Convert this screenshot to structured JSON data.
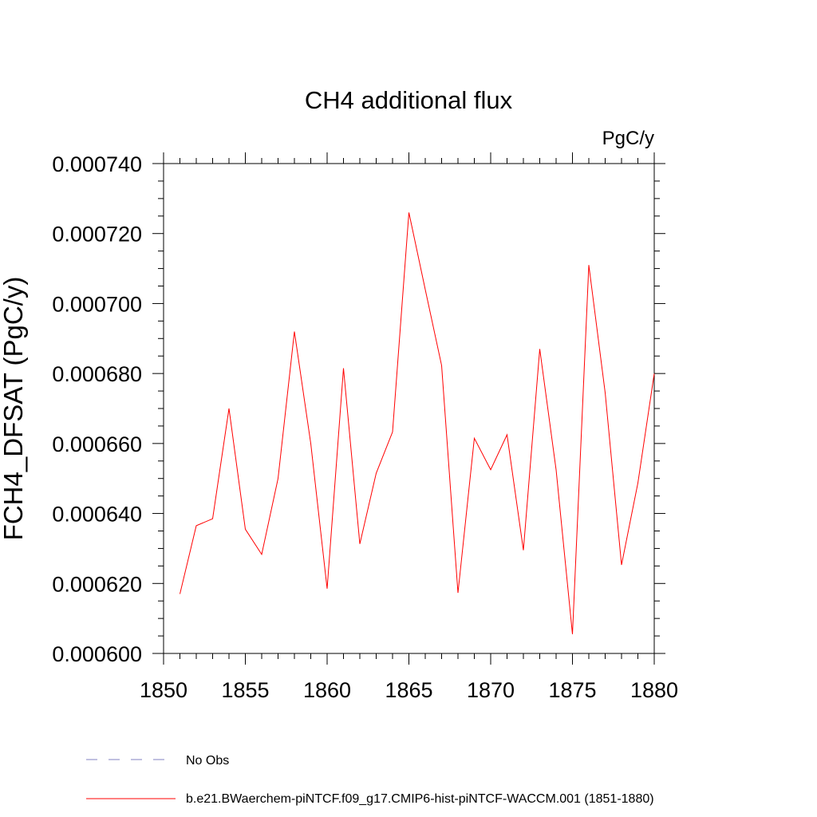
{
  "chart_data": {
    "type": "line",
    "title": "CH4 additional flux",
    "units_label": "PgC/y",
    "ylabel": "FCH4_DFSAT  (PgC/y)",
    "xlabel": "",
    "xlim": [
      1850,
      1880
    ],
    "ylim": [
      0.0006,
      0.00074
    ],
    "x_ticks": [
      1850,
      1855,
      1860,
      1865,
      1870,
      1875,
      1880
    ],
    "x_tick_labels": [
      "1850",
      "1855",
      "1860",
      "1865",
      "1870",
      "1875",
      "1880"
    ],
    "y_ticks": [
      0.0006,
      0.00062,
      0.00064,
      0.00066,
      0.00068,
      0.0007,
      0.00072,
      0.00074
    ],
    "y_tick_labels": [
      "0.000600",
      "0.000620",
      "0.000640",
      "0.000660",
      "0.000680",
      "0.000700",
      "0.000720",
      "0.000740"
    ],
    "grid": false,
    "legend_position": "bottom-left",
    "series": [
      {
        "name": "b.e21.BWaerchem-piNTCF.f09_g17.CMIP6-hist-piNTCF-WACCM.001 (1851-1880)",
        "color": "#ff0000",
        "style": "solid",
        "x": [
          1851,
          1852,
          1853,
          1854,
          1855,
          1856,
          1857,
          1858,
          1859,
          1860,
          1861,
          1862,
          1863,
          1864,
          1865,
          1866,
          1867,
          1868,
          1869,
          1870,
          1871,
          1872,
          1873,
          1874,
          1875,
          1876,
          1877,
          1878,
          1879,
          1880
        ],
        "y": [
          0.000617,
          0.0006365,
          0.0006385,
          0.00067,
          0.0006355,
          0.0006283,
          0.00065,
          0.000692,
          0.00066,
          0.0006185,
          0.0006815,
          0.0006313,
          0.0006515,
          0.0006633,
          0.000726,
          0.000704,
          0.0006823,
          0.0006173,
          0.0006615,
          0.0006525,
          0.0006625,
          0.0006295,
          0.000687,
          0.0006525,
          0.0006055,
          0.000711,
          0.0006745,
          0.0006253,
          0.0006487,
          0.00068
        ]
      },
      {
        "name": "No Obs",
        "color": "#8080c0",
        "style": "dashed",
        "x": [],
        "y": []
      }
    ]
  }
}
